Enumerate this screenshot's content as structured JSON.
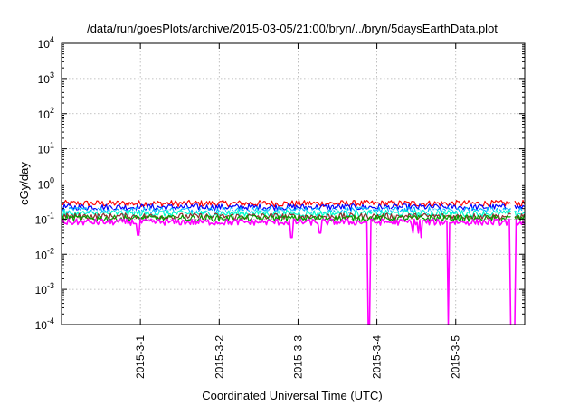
{
  "chart_data": {
    "type": "line",
    "title": "/data/run/goesPlots/archive/2015-03-05/21:00/bryn/../bryn/5daysEarthData.plot",
    "xlabel": "Coordinated Universal Time (UTC)",
    "ylabel": "cGy/day",
    "yscale": "log",
    "ylim": [
      0.0001,
      10000
    ],
    "xlim": [
      "2015-02-28T00:00",
      "2015-03-05T21:00"
    ],
    "grid": true,
    "legend": "none",
    "y_ticks": [
      {
        "value": 0.0001,
        "base": "10",
        "exp": "-4"
      },
      {
        "value": 0.001,
        "base": "10",
        "exp": "-3"
      },
      {
        "value": 0.01,
        "base": "10",
        "exp": "-2"
      },
      {
        "value": 0.1,
        "base": "10",
        "exp": "-1"
      },
      {
        "value": 1,
        "base": "10",
        "exp": "0"
      },
      {
        "value": 10,
        "base": "10",
        "exp": "1"
      },
      {
        "value": 100,
        "base": "10",
        "exp": "2"
      },
      {
        "value": 1000,
        "base": "10",
        "exp": "3"
      },
      {
        "value": 10000,
        "base": "10",
        "exp": "4"
      }
    ],
    "x_ticks": [
      {
        "value": "2015-03-01T00:00",
        "label": "2015-3-1"
      },
      {
        "value": "2015-03-02T00:00",
        "label": "2015-3-2"
      },
      {
        "value": "2015-03-03T00:00",
        "label": "2015-3-3"
      },
      {
        "value": "2015-03-04T00:00",
        "label": "2015-3-4"
      },
      {
        "value": "2015-03-05T00:00",
        "label": "2015-3-5"
      }
    ],
    "gaps": [
      {
        "start": "2015-03-05T17:00",
        "end": "2015-03-05T17:40"
      }
    ],
    "series": [
      {
        "color": "#ff0000",
        "base": 0.28,
        "dips": []
      },
      {
        "color": "#0000ff",
        "base": 0.22,
        "dips": []
      },
      {
        "color": "#00b4ff",
        "base": 0.18,
        "dips": []
      },
      {
        "color": "#ffffff",
        "base": 0.16,
        "dips": []
      },
      {
        "color": "#00ffcc",
        "base": 0.145,
        "dips": []
      },
      {
        "color": "#8b2d2d",
        "base": 0.12,
        "dips": []
      },
      {
        "color": "#00a000",
        "base": 0.105,
        "dips": []
      },
      {
        "color": "#ff00ff",
        "base": 0.082,
        "dips": [
          {
            "x": "2015-03-04T21:45",
            "y": 0.0001
          },
          {
            "x": "2015-03-05T16:45",
            "y": 0.0001
          },
          {
            "x": "2015-03-05T18:00",
            "y": 0.0001
          },
          {
            "x": "2015-03-03T21:30",
            "y": 0.0001
          },
          {
            "x": "2015-03-03T21:50",
            "y": 0.0001
          },
          {
            "x": "2015-02-28T23:20",
            "y": 0.035
          },
          {
            "x": "2015-03-02T22:00",
            "y": 0.03
          },
          {
            "x": "2015-03-03T06:40",
            "y": 0.04
          },
          {
            "x": "2015-03-04T11:00",
            "y": 0.04
          },
          {
            "x": "2015-03-04T12:30",
            "y": 0.04
          },
          {
            "x": "2015-03-04T13:30",
            "y": 0.03
          }
        ]
      }
    ]
  }
}
